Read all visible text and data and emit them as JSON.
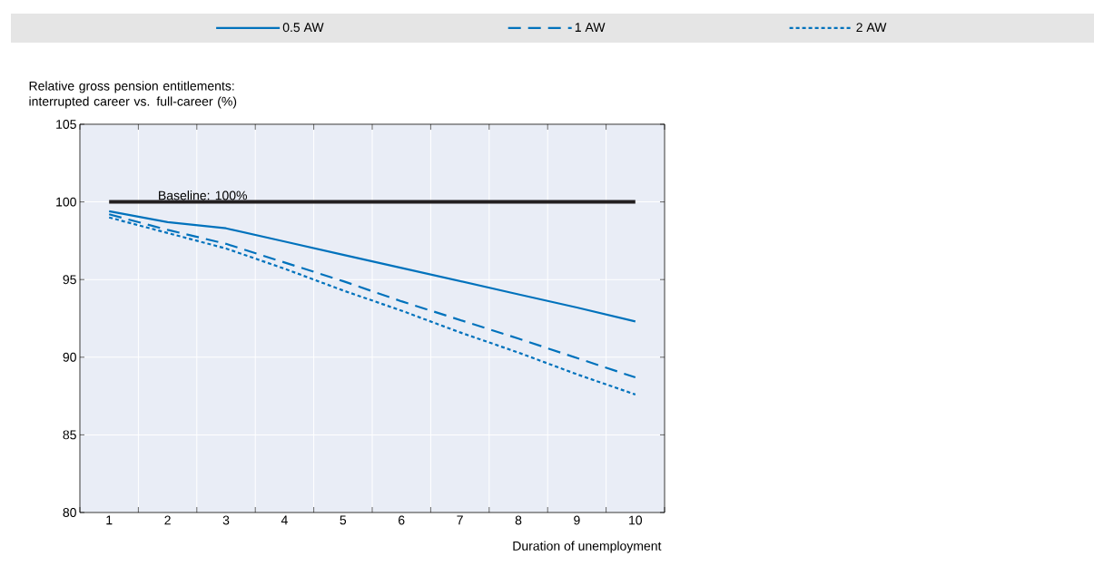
{
  "chart_data": {
    "type": "line",
    "ylabel": "Relative gross pension entitlements: interrupted career vs. full-career (%)",
    "xlabel": "Duration of unemployment",
    "categories": [
      "1",
      "2",
      "3",
      "4",
      "5",
      "6",
      "7",
      "8",
      "9",
      "10"
    ],
    "ylim": [
      80,
      105
    ],
    "yticks": [
      80,
      85,
      90,
      95,
      100,
      105
    ],
    "grid": true,
    "legend": "top",
    "series": [
      {
        "name": "0.5 AW",
        "color": "#0072bc",
        "line_style": "solid",
        "values": [
          99.4,
          98.7,
          98.3,
          97.45,
          96.6,
          95.75,
          94.9,
          94.05,
          93.2,
          92.3
        ]
      },
      {
        "name": "1 AW",
        "color": "#0072bc",
        "line_style": "dashed",
        "values": [
          99.2,
          98.2,
          97.3,
          96.1,
          94.9,
          93.6,
          92.4,
          91.2,
          89.95,
          88.7
        ]
      },
      {
        "name": "2 AW",
        "color": "#0072bc",
        "line_style": "dotted",
        "values": [
          99.0,
          98.0,
          97.0,
          95.7,
          94.3,
          93.0,
          91.6,
          90.3,
          88.9,
          87.6
        ]
      }
    ],
    "ref_lines": [
      {
        "axis": "y",
        "value": 100,
        "label": "Baseline: 100%",
        "color": "#231f20"
      }
    ]
  }
}
